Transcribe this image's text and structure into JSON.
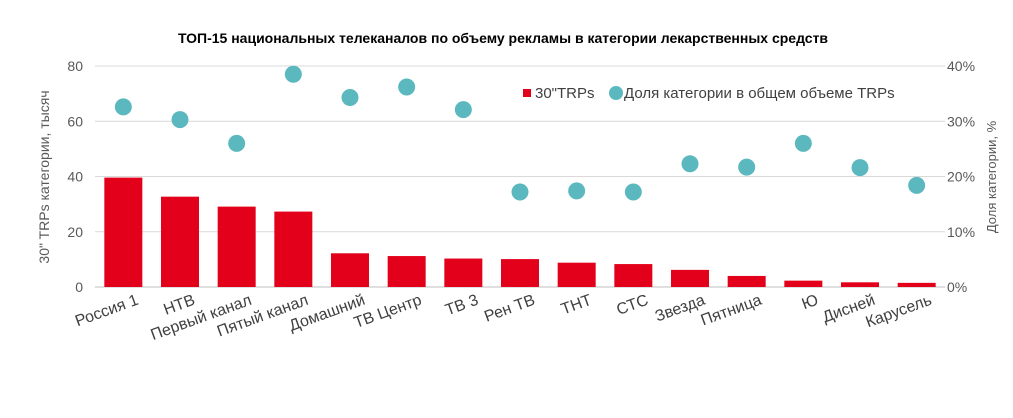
{
  "chart_data": {
    "type": "bar",
    "title": "ТОП-15 национальных телеканалов по объему рекламы в категории лекарственных средств",
    "ylabel": "30\" TRPs категории, тысяч",
    "y2label": "Доля категории, %",
    "xlabel": "",
    "ylim": [
      0,
      80
    ],
    "y2lim": [
      0,
      40
    ],
    "yticks": [
      "0",
      "20",
      "40",
      "60",
      "80"
    ],
    "y2ticks": [
      "0%",
      "10%",
      "20%",
      "30%",
      "40%"
    ],
    "grid": true,
    "legend_position": "top-right",
    "categories": [
      "Россия 1",
      "НТВ",
      "Первый канал",
      "Пятый канал",
      "Домашний",
      "ТВ Центр",
      "ТВ 3",
      "Рен ТВ",
      "ТНТ",
      "СТС",
      "Звезда",
      "Пятница",
      "Ю",
      "Дисней",
      "Карусель"
    ],
    "series": [
      {
        "name": "30\"TRPs",
        "kind": "bar",
        "axis": "left",
        "color": "#E2001A",
        "values": [
          39.6,
          32.7,
          29.1,
          27.3,
          12.2,
          11.2,
          10.3,
          10.1,
          8.8,
          8.3,
          6.2,
          4.0,
          2.3,
          1.7,
          1.5
        ]
      },
      {
        "name": "Доля категории в общем объеме TRPs",
        "kind": "scatter",
        "axis": "right",
        "color": "#5BB8BE",
        "values": [
          32.6,
          30.3,
          26.0,
          38.5,
          34.3,
          36.2,
          32.1,
          17.2,
          17.4,
          17.2,
          22.3,
          21.7,
          26.0,
          21.6,
          18.4
        ]
      }
    ]
  }
}
